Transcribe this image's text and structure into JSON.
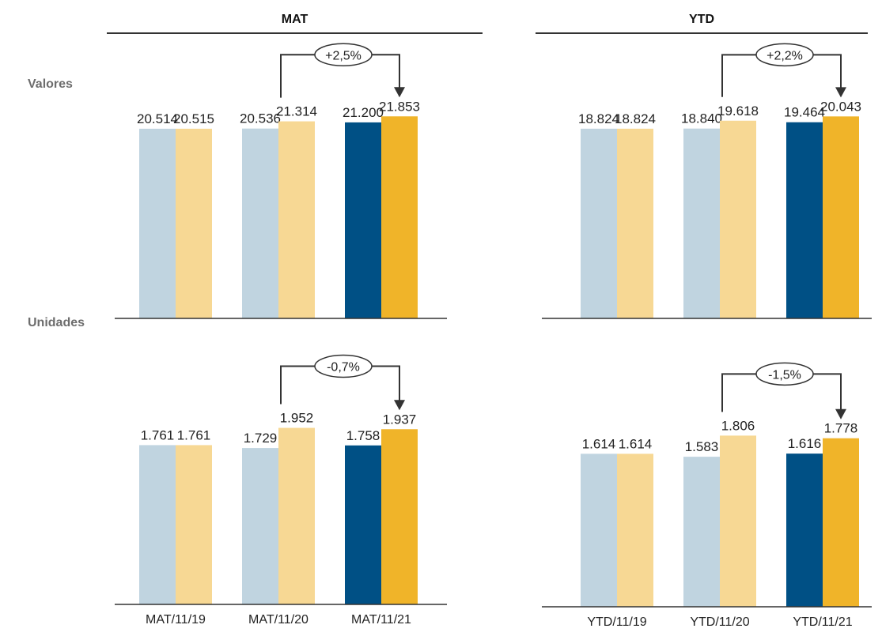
{
  "column_titles": {
    "mat": "MAT",
    "ytd": "YTD"
  },
  "row_labels": {
    "valores": "Valores",
    "unidades": "Unidades"
  },
  "colors": {
    "light_blue": "#c0d4e0",
    "light_yellow": "#f7d894",
    "dark_blue": "#005085",
    "gold": "#f0b429",
    "text": "#222222",
    "axis": "#333333"
  },
  "chart_data": [
    {
      "id": "mat-valores",
      "type": "bar",
      "categories": [
        "MAT/11/19",
        "MAT/11/20",
        "MAT/11/21"
      ],
      "series": [
        {
          "values": [
            20514,
            20536,
            21200
          ],
          "labels": [
            "20.514",
            "20.536",
            "21.200"
          ]
        },
        {
          "values": [
            20515,
            21314,
            21853
          ],
          "labels": [
            "20.515",
            "21.314",
            "21.853"
          ]
        }
      ],
      "ylim": [
        0,
        23500
      ],
      "annotation": "+2,5%",
      "show_categories": false
    },
    {
      "id": "ytd-valores",
      "type": "bar",
      "categories": [
        "YTD/11/19",
        "YTD/11/20",
        "YTD/11/21"
      ],
      "series": [
        {
          "values": [
            18824,
            18840,
            19464
          ],
          "labels": [
            "18.824",
            "18.840",
            "19.464"
          ]
        },
        {
          "values": [
            18824,
            19618,
            20043
          ],
          "labels": [
            "18.824",
            "19.618",
            "20.043"
          ]
        }
      ],
      "ylim": [
        0,
        21560
      ],
      "annotation": "+2,2%",
      "show_categories": false
    },
    {
      "id": "mat-unidades",
      "type": "bar",
      "categories": [
        "MAT/11/19",
        "MAT/11/20",
        "MAT/11/21"
      ],
      "series": [
        {
          "values": [
            1761,
            1729,
            1758
          ],
          "labels": [
            "1.761",
            "1.729",
            "1.758"
          ]
        },
        {
          "values": [
            1761,
            1952,
            1937
          ],
          "labels": [
            "1.761",
            "1.952",
            "1.937"
          ]
        }
      ],
      "ylim": [
        0,
        2184
      ],
      "annotation": "-0,7%",
      "show_categories": true
    },
    {
      "id": "ytd-unidades",
      "type": "bar",
      "categories": [
        "YTD/11/19",
        "YTD/11/20",
        "YTD/11/21"
      ],
      "series": [
        {
          "values": [
            1614,
            1583,
            1616
          ],
          "labels": [
            "1.614",
            "1.583",
            "1.616"
          ]
        },
        {
          "values": [
            1614,
            1806,
            1778
          ],
          "labels": [
            "1.614",
            "1.806",
            "1.778"
          ]
        }
      ],
      "ylim": [
        0,
        2084
      ],
      "annotation": "-1,5%",
      "show_categories": true
    }
  ]
}
